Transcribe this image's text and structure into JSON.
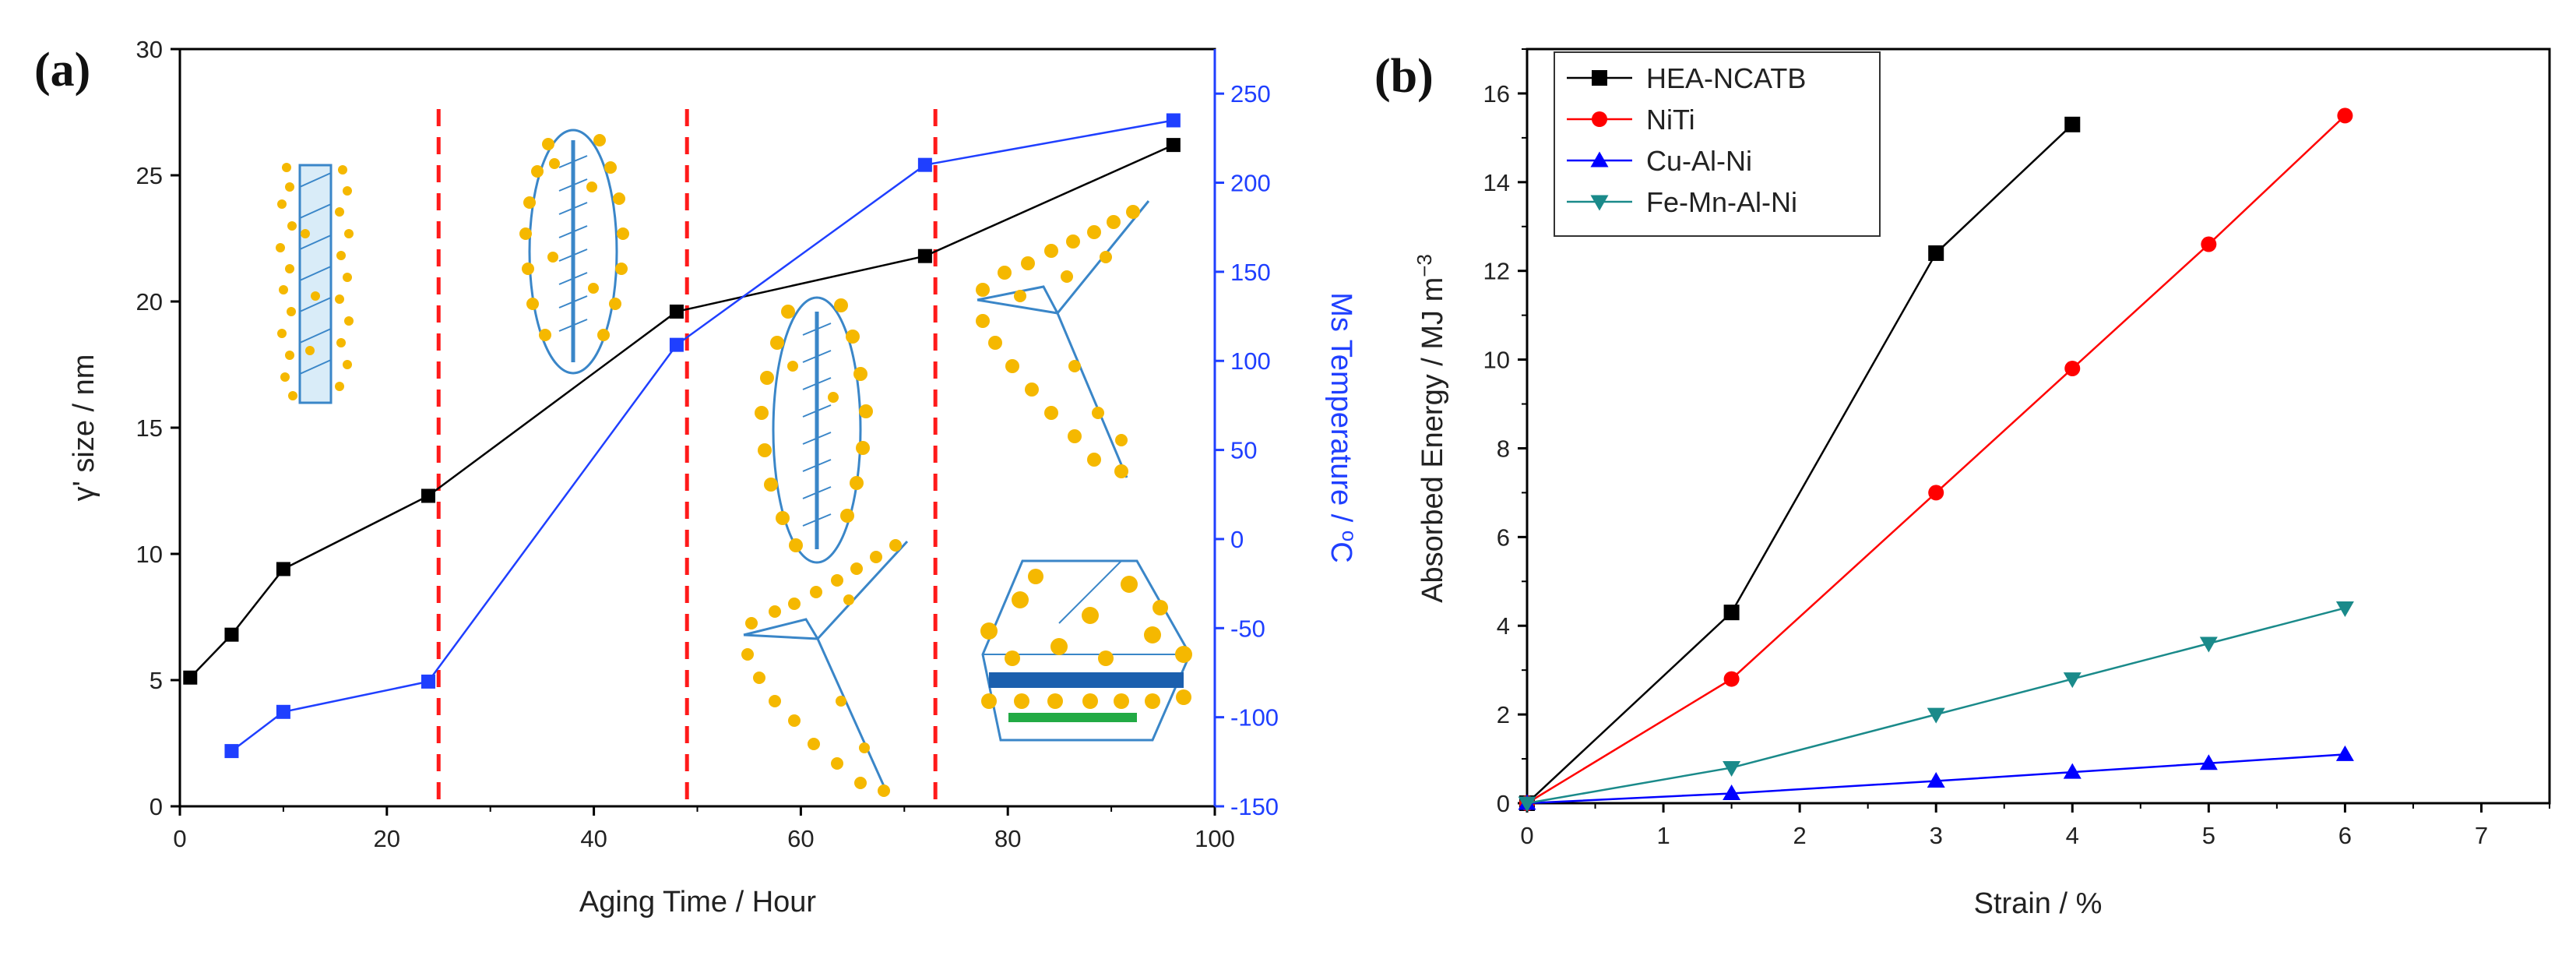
{
  "chart_data": [
    {
      "panel": "(a)",
      "type": "line",
      "xlabel": "Aging Time / Hour",
      "ylabel": "γ' size / nm",
      "y2label": "Ms Temperature / °C",
      "y2label_parts": {
        "main": "Ms Temperature / ",
        "sup": "o",
        "unit": "C"
      },
      "xlim": [
        0,
        100
      ],
      "ylim": [
        0,
        30
      ],
      "y2lim": [
        -150,
        275
      ],
      "xticks": [
        0,
        20,
        40,
        60,
        80,
        100
      ],
      "yticks": [
        0,
        5,
        10,
        15,
        20,
        25,
        30
      ],
      "y2ticks": [
        -150,
        -100,
        -50,
        0,
        50,
        100,
        150,
        200,
        250
      ],
      "vlines": [
        25,
        49,
        73
      ],
      "series": [
        {
          "name": "γ' size",
          "axis": "left",
          "color": "#000000",
          "marker": "square",
          "x": [
            1,
            5,
            10,
            24,
            48,
            72,
            96
          ],
          "values": [
            5.1,
            6.8,
            9.4,
            12.3,
            19.6,
            21.8,
            26.2
          ]
        },
        {
          "name": "Ms Temperature",
          "axis": "right",
          "color": "#1f3fff",
          "marker": "square",
          "x": [
            5,
            10,
            24,
            48,
            72,
            96
          ],
          "values": [
            -119,
            -97,
            -80,
            109,
            210,
            235
          ]
        }
      ]
    },
    {
      "panel": "(b)",
      "type": "line",
      "xlabel": "Strain / %",
      "ylabel": "Absorbed Energy / MJ m−3",
      "ylabel_parts": {
        "main": "Absorbed Energy / MJ m",
        "sup": "−3"
      },
      "xlim": [
        0,
        7.5
      ],
      "ylim": [
        0,
        17
      ],
      "xticks": [
        0,
        1,
        2,
        3,
        4,
        5,
        6,
        7
      ],
      "yticks": [
        0,
        2,
        4,
        6,
        8,
        10,
        12,
        14,
        16
      ],
      "legend_position": "top-left",
      "series": [
        {
          "name": "HEA-NCATB",
          "color": "#000000",
          "marker": "square",
          "x": [
            0,
            1.5,
            3,
            4
          ],
          "values": [
            0,
            4.3,
            12.4,
            15.3
          ]
        },
        {
          "name": "NiTi",
          "color": "#ff0000",
          "marker": "circle",
          "x": [
            0,
            1.5,
            3,
            4,
            5,
            6
          ],
          "values": [
            0,
            2.8,
            7.0,
            9.8,
            12.6,
            15.5
          ]
        },
        {
          "name": "Cu-Al-Ni",
          "color": "#0000ff",
          "marker": "triangle-up",
          "x": [
            0,
            1.5,
            3,
            4,
            5,
            6
          ],
          "values": [
            0,
            0.22,
            0.5,
            0.7,
            0.9,
            1.1
          ]
        },
        {
          "name": "Fe-Mn-Al-Ni",
          "color": "#1a8a8a",
          "marker": "triangle-down",
          "x": [
            0,
            1.5,
            3,
            4,
            5,
            6
          ],
          "values": [
            0,
            0.8,
            2.0,
            2.8,
            3.6,
            4.4
          ]
        }
      ]
    }
  ],
  "colors": {
    "dashed_line": "#ff1a1a",
    "precipitate": "#f5b800",
    "schematic_line": "#3a86c8",
    "band_blue": "#1b5fae",
    "band_green": "#22aa44"
  },
  "schematic_icons": [
    "lath-with-precipitates",
    "ellipse-variant-a",
    "ellipse-variant-b",
    "chevron-upper",
    "chevron-lower",
    "hexagon-layered"
  ]
}
